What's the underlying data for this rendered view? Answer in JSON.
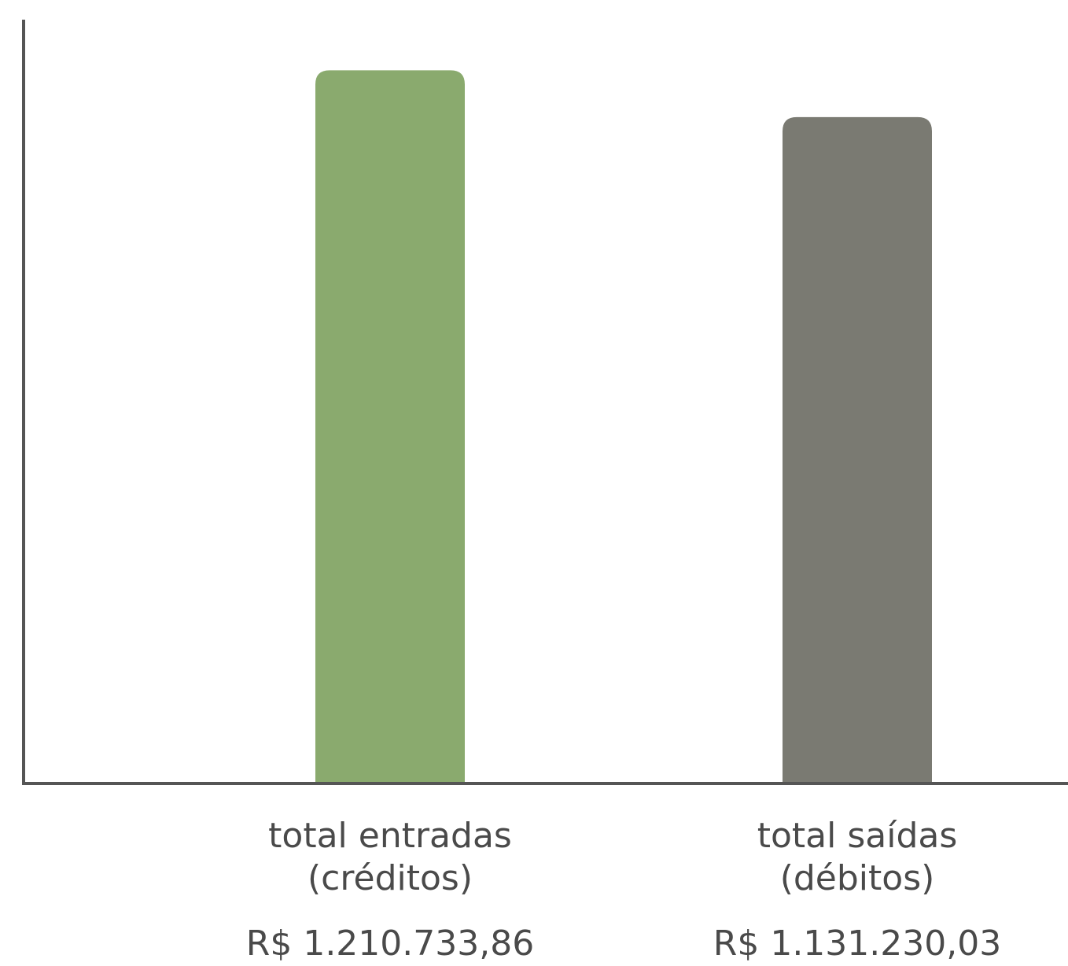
{
  "chart_data": {
    "type": "bar",
    "categories": [
      "total entradas\n(créditos)",
      "total saídas\n(débitos)"
    ],
    "category_lines": [
      [
        "total entradas",
        "(créditos)"
      ],
      [
        "total saídas",
        "(débitos)"
      ]
    ],
    "values": [
      1210733.86,
      1131230.03
    ],
    "value_labels": [
      "R$ 1.210.733,86",
      "R$ 1.131.230,03"
    ],
    "colors": [
      "#8aaa6e",
      "#7a7a72"
    ],
    "axis_color": "#555555",
    "title": "",
    "xlabel": "",
    "ylabel": "",
    "ylim": [
      0,
      1330000
    ],
    "grid": false,
    "legend": "none"
  }
}
